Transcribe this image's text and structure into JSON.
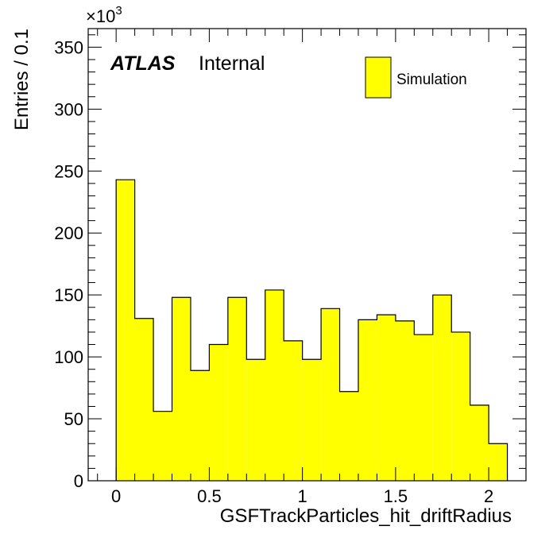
{
  "chart_data": {
    "type": "bar",
    "subtype": "histogram",
    "xlabel": "GSFTrackParticles_hit_driftRadius",
    "ylabel": "Entries / 0.1",
    "y_multiplier_label": "×10",
    "y_multiplier_exponent": "3",
    "xlim": [
      -0.15,
      2.2
    ],
    "ylim": [
      0,
      365
    ],
    "x_ticks": [
      0,
      0.5,
      1,
      1.5,
      2
    ],
    "x_tick_labels": [
      "0",
      "0.5",
      "1",
      "1.5",
      "2"
    ],
    "y_ticks": [
      0,
      50,
      100,
      150,
      200,
      250,
      300,
      350
    ],
    "y_tick_labels": [
      "0",
      "50",
      "100",
      "150",
      "200",
      "250",
      "300",
      "350"
    ],
    "bin_edges": [
      0,
      0.1,
      0.2,
      0.3,
      0.4,
      0.5,
      0.6,
      0.7,
      0.8,
      0.9,
      1.0,
      1.1,
      1.2,
      1.3,
      1.4,
      1.5,
      1.6,
      1.7,
      1.8,
      1.9,
      2.0,
      2.1
    ],
    "series": [
      {
        "name": "Simulation",
        "color": "#ffff00",
        "values": [
          243,
          131,
          56,
          148,
          89,
          110,
          148,
          98,
          154,
          113,
          98,
          139,
          72,
          130,
          134,
          129,
          118,
          150,
          120,
          61,
          30
        ]
      }
    ],
    "legend_position": "top-right",
    "grid": false
  },
  "labels": {
    "atlas": "ATLAS",
    "internal": "Internal"
  },
  "colors": {
    "fill": "#ffff00",
    "line": "#000000",
    "background": "#ffffff"
  }
}
